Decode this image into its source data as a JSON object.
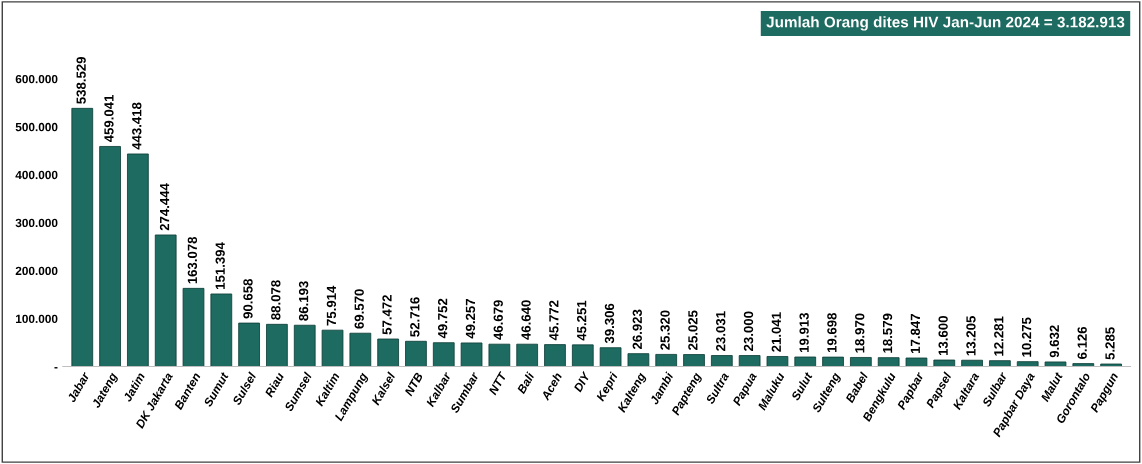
{
  "chart_data": {
    "type": "bar",
    "title": "Jumlah Orang dites HIV Jan-Jun 2024 = 3.182.913",
    "categories": [
      "Jabar",
      "Jateng",
      "Jatim",
      "DK Jakarta",
      "Banten",
      "Sumut",
      "Sulsel",
      "Riau",
      "Sumsel",
      "Kaltim",
      "Lampung",
      "Kalsel",
      "NTB",
      "Kalbar",
      "Sumbar",
      "NTT",
      "Bali",
      "Aceh",
      "DIY",
      "Kepri",
      "Kalteng",
      "Jambi",
      "Papteng",
      "Sultra",
      "Papua",
      "Maluku",
      "Sulut",
      "Sulteng",
      "Babel",
      "Bengkulu",
      "Papbar",
      "Papsel",
      "Kaltara",
      "Sulbar",
      "Papbar Daya",
      "Malut",
      "Gorontalo",
      "Papgun"
    ],
    "values": [
      538529,
      459041,
      443418,
      274444,
      163078,
      151394,
      90658,
      88078,
      86193,
      75914,
      69570,
      57472,
      52716,
      49752,
      49257,
      46679,
      46640,
      45772,
      45251,
      39306,
      26923,
      25320,
      25025,
      23031,
      23000,
      21041,
      19913,
      19698,
      18970,
      18579,
      17847,
      13600,
      13205,
      12281,
      10275,
      9632,
      6126,
      5285
    ],
    "value_labels": [
      "538.529",
      "459.041",
      "443.418",
      "274.444",
      "163.078",
      "151.394",
      "90.658",
      "88.078",
      "86.193",
      "75.914",
      "69.570",
      "57.472",
      "52.716",
      "49.752",
      "49.257",
      "46.679",
      "46.640",
      "45.772",
      "45.251",
      "39.306",
      "26.923",
      "25.320",
      "25.025",
      "23.031",
      "23.000",
      "21.041",
      "19.913",
      "19.698",
      "18.970",
      "18.579",
      "17.847",
      "13.600",
      "13.205",
      "12.281",
      "10.275",
      "9.632",
      "6.126",
      "5.285"
    ],
    "color": "#1d6b61",
    "ylim": [
      0,
      600000
    ],
    "yticks": [
      {
        "value": 0,
        "label": "-"
      },
      {
        "value": 100000,
        "label": "100.000"
      },
      {
        "value": 200000,
        "label": "200.000"
      },
      {
        "value": 300000,
        "label": "300.000"
      },
      {
        "value": 400000,
        "label": "400.000"
      },
      {
        "value": 500000,
        "label": "500.000"
      },
      {
        "value": 600000,
        "label": "600.000"
      }
    ],
    "grid": false
  }
}
